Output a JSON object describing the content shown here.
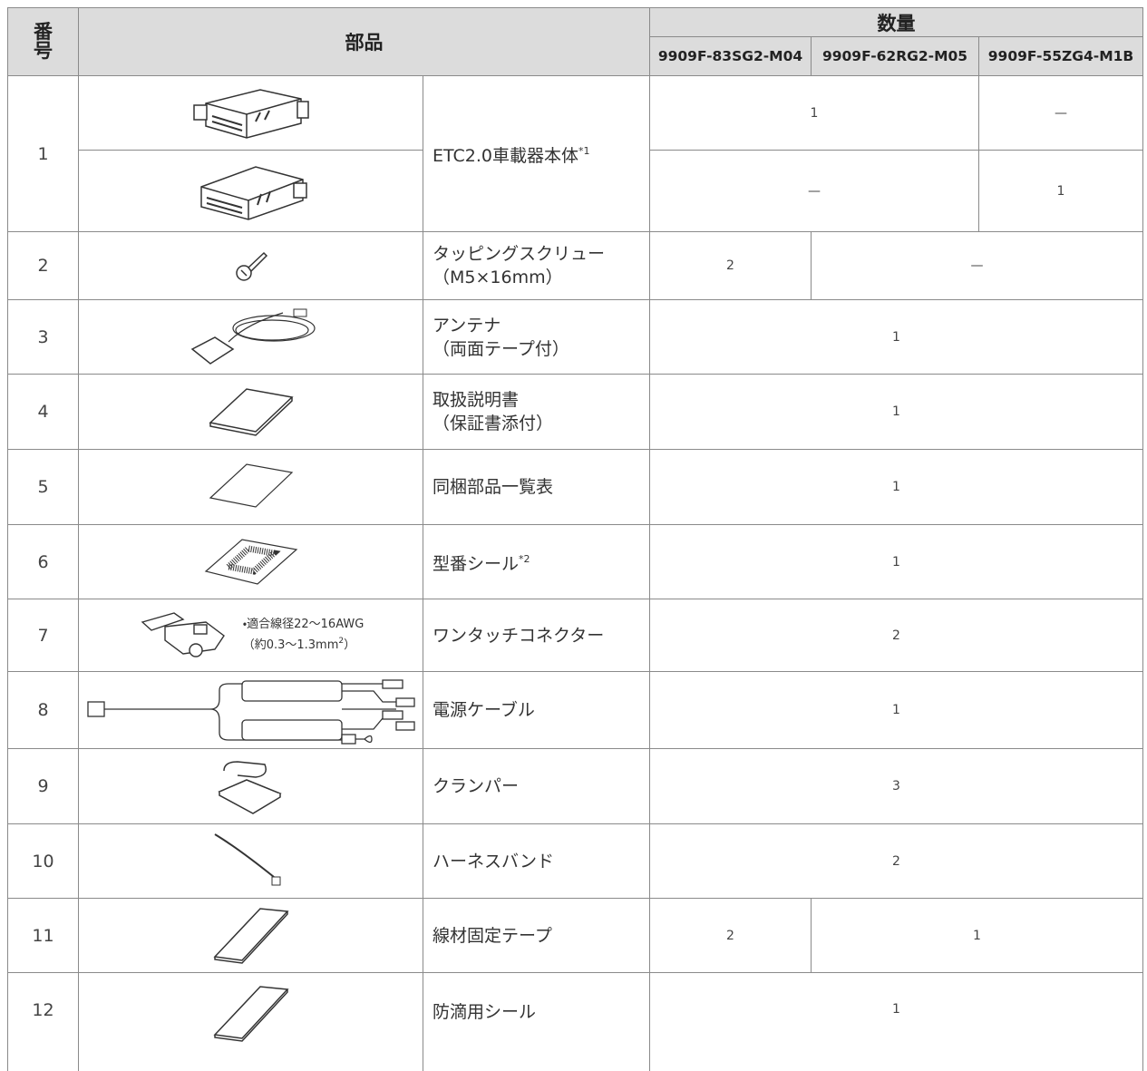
{
  "header": {
    "number_label": "番号",
    "parts_label": "部品",
    "quantity_label": "数量",
    "models": [
      "9909F-83SG2-M04",
      "9909F-62RG2-M05",
      "9909F-55ZG4-M1B"
    ]
  },
  "rows": [
    {
      "number": 1,
      "name": "ETC2.0車載器本体",
      "name_note": "*1",
      "quantities": [
        [
          1,
          "—"
        ],
        [
          "—",
          1
        ]
      ]
    },
    {
      "number": 2,
      "name": "タッピングスクリュー",
      "name_sub": "（M5×16mm）",
      "quantities": [
        2,
        "—"
      ]
    },
    {
      "number": 3,
      "name": "アンテナ",
      "name_sub": "（両面テープ付）",
      "quantities": [
        1
      ]
    },
    {
      "number": 4,
      "name": "取扱説明書",
      "name_sub": "（保証書添付）",
      "quantities": [
        1
      ]
    },
    {
      "number": 5,
      "name": "同梱部品一覧表",
      "quantities": [
        1
      ]
    },
    {
      "number": 6,
      "name": "型番シール",
      "name_note": "*2",
      "quantities": [
        1
      ]
    },
    {
      "number": 7,
      "name": "ワンタッチコネクター",
      "wire_note": {
        "line1": "・適合線径22〜16AWG",
        "line2": "（約0.3〜1.3mm",
        "sup": "2",
        "line2_end": "）"
      },
      "quantities": [
        2
      ]
    },
    {
      "number": 8,
      "name": "電源ケーブル",
      "quantities": [
        1
      ]
    },
    {
      "number": 9,
      "name": "クランパー",
      "quantities": [
        3
      ]
    },
    {
      "number": 10,
      "name": "ハーネスバンド",
      "quantities": [
        2
      ]
    },
    {
      "number": 11,
      "name": "線材固定テープ",
      "quantities": [
        2,
        1
      ]
    },
    {
      "number": 12,
      "name": "防滴用シール",
      "quantities": [
        1
      ]
    }
  ]
}
